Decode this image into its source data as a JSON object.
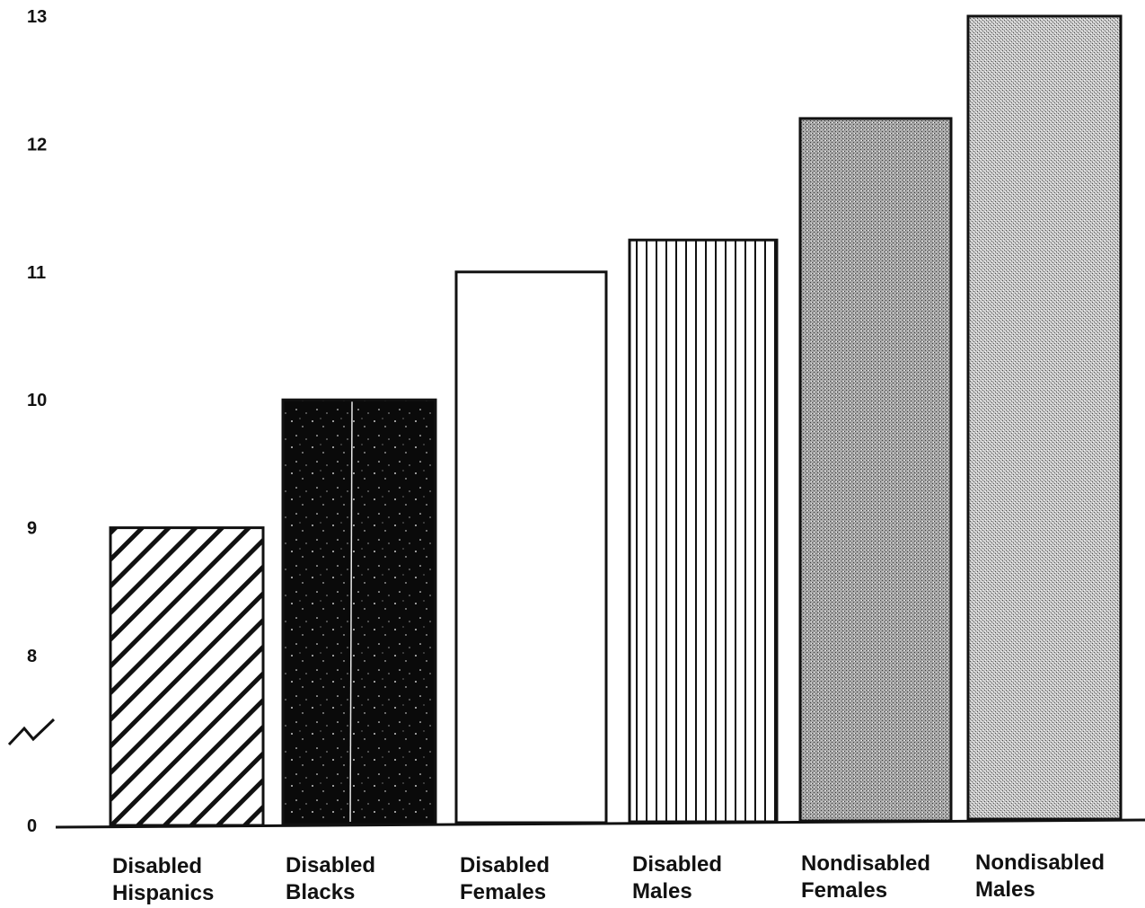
{
  "chart_data": {
    "type": "bar",
    "title": "",
    "xlabel": "",
    "ylabel": "",
    "categories": [
      [
        "Disabled",
        "Hispanics"
      ],
      [
        "Disabled",
        "Blacks"
      ],
      [
        "Disabled",
        "Females"
      ],
      [
        "Disabled",
        "Males"
      ],
      [
        "Nondisabled",
        "Females"
      ],
      [
        "Nondisabled",
        "Males"
      ]
    ],
    "values": [
      9.0,
      10.0,
      11.0,
      11.25,
      12.2,
      13.0
    ],
    "y_ticks": [
      "0",
      "8",
      "9",
      "10",
      "11",
      "12",
      "13"
    ],
    "y_axis_break": "between 0 and 8",
    "ylim": [
      0,
      13
    ],
    "grid": false,
    "legend": "none",
    "bar_fills": [
      "diagonal-hatch",
      "black-speckled",
      "white",
      "vertical-lines",
      "dark-stipple",
      "light-stipple"
    ],
    "colors": {
      "ink": "#111111",
      "paper": "#ffffff",
      "stipple_dark": "#9c9c9c",
      "stipple_light": "#b8b8b8"
    }
  }
}
